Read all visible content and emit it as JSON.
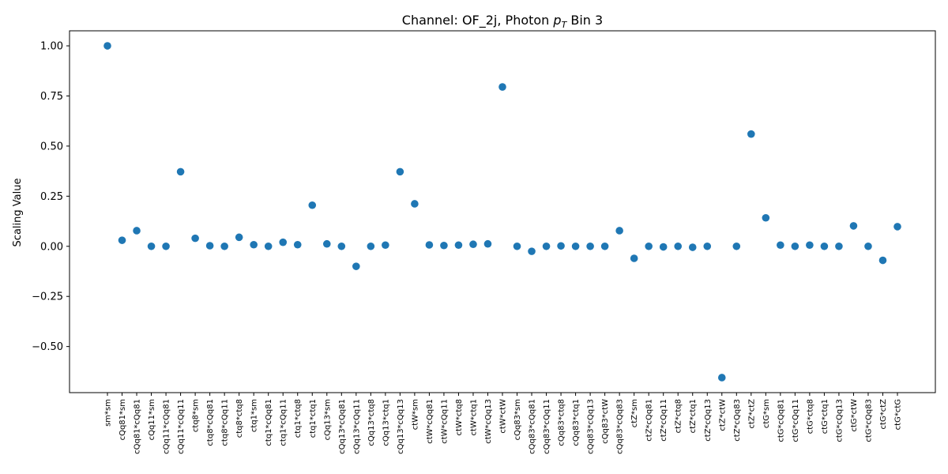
{
  "chart_data": {
    "type": "scatter",
    "title": "Channel: OF_2j, Photon ",
    "title_math": "p",
    "title_math_sub": "T",
    "title_suffix": " Bin 3",
    "xlabel": "",
    "ylabel": "Scaling Value",
    "ylim": [
      -0.73,
      1.075
    ],
    "yticks": [
      -0.5,
      -0.25,
      0.0,
      0.25,
      0.5,
      0.75,
      1.0
    ],
    "ytick_labels": [
      "−0.50",
      "−0.25",
      "0.00",
      "0.25",
      "0.50",
      "0.75",
      "1.00"
    ],
    "grid": false,
    "marker_color": "#1f77b4",
    "categories": [
      "sm*sm",
      "cQq81*sm",
      "cQq81*cQq81",
      "cQq11*sm",
      "cQq11*cQq81",
      "cQq11*cQq11",
      "ctq8*sm",
      "ctq8*cQq81",
      "ctq8*cQq11",
      "ctq8*ctq8",
      "ctq1*sm",
      "ctq1*cQq81",
      "ctq1*cQq11",
      "ctq1*ctq8",
      "ctq1*ctq1",
      "cQq13*sm",
      "cQq13*cQq81",
      "cQq13*cQq11",
      "cQq13*ctq8",
      "cQq13*ctq1",
      "cQq13*cQq13",
      "ctW*sm",
      "ctW*cQq81",
      "ctW*cQq11",
      "ctW*ctq8",
      "ctW*ctq1",
      "ctW*cQq13",
      "ctW*ctW",
      "cQq83*sm",
      "cQq83*cQq81",
      "cQq83*cQq11",
      "cQq83*ctq8",
      "cQq83*ctq1",
      "cQq83*cQq13",
      "cQq83*ctW",
      "cQq83*cQq83",
      "ctZ*sm",
      "ctZ*cQq81",
      "ctZ*cQq11",
      "ctZ*ctq8",
      "ctZ*ctq1",
      "ctZ*cQq13",
      "ctZ*ctW",
      "ctZ*cQq83",
      "ctZ*ctZ",
      "ctG*sm",
      "ctG*cQq81",
      "ctG*cQq11",
      "ctG*ctq8",
      "ctG*ctq1",
      "ctG*cQq13",
      "ctG*ctW",
      "ctG*cQq83",
      "ctG*ctZ",
      "ctG*ctG"
    ],
    "values": [
      1.0,
      0.03,
      0.078,
      0.0,
      0.0,
      0.372,
      0.04,
      0.003,
      0.0,
      0.045,
      0.008,
      0.0,
      0.02,
      0.008,
      0.205,
      0.012,
      0.0,
      -0.1,
      0.0,
      0.006,
      0.372,
      0.212,
      0.007,
      0.004,
      0.006,
      0.01,
      0.012,
      0.795,
      0.0,
      -0.025,
      0.0,
      0.002,
      0.0,
      0.0,
      0.0,
      0.078,
      -0.06,
      0.0,
      -0.003,
      0.0,
      -0.005,
      0.0,
      -0.655,
      0.0,
      0.56,
      0.142,
      0.006,
      0.0,
      0.006,
      0.0,
      0.0,
      0.102,
      0.0,
      -0.07,
      0.098
    ]
  }
}
